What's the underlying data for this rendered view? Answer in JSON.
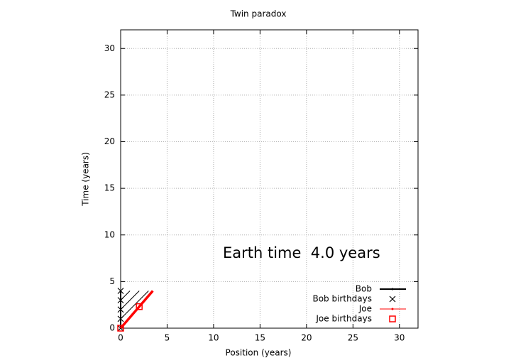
{
  "chart_data": {
    "type": "line",
    "title": "Twin paradox",
    "xlabel": "Position (years)",
    "ylabel": "Time (years)",
    "xlim": [
      0,
      32
    ],
    "ylim": [
      0,
      32
    ],
    "xticks": [
      0,
      5,
      10,
      15,
      20,
      25,
      30
    ],
    "yticks": [
      0,
      5,
      10,
      15,
      20,
      25,
      30
    ],
    "grid": true,
    "legend": "lower right",
    "annotation": "Earth time  4.0 years",
    "series": [
      {
        "name": "Bob",
        "color": "#000000",
        "style": "line",
        "x": [
          0,
          0
        ],
        "values": [
          0,
          4
        ]
      },
      {
        "name": "Bob birthdays",
        "color": "#000000",
        "style": "cross",
        "x": [
          0,
          0,
          0,
          0,
          0
        ],
        "values": [
          0,
          1,
          2,
          3,
          4
        ]
      },
      {
        "name": "Joe",
        "color": "#ff0000",
        "style": "line",
        "x": [
          0,
          3.46
        ],
        "values": [
          0,
          4
        ]
      },
      {
        "name": "Joe birthdays",
        "color": "#ff0000",
        "style": "square",
        "x": [
          0,
          2.0
        ],
        "values": [
          0,
          2.31
        ]
      }
    ],
    "light_signals": {
      "color": "#000000",
      "x": [
        0,
        3,
        null,
        0,
        2,
        null,
        0,
        1
      ],
      "values": [
        1,
        4,
        null,
        2,
        4,
        null,
        3,
        4
      ]
    }
  }
}
